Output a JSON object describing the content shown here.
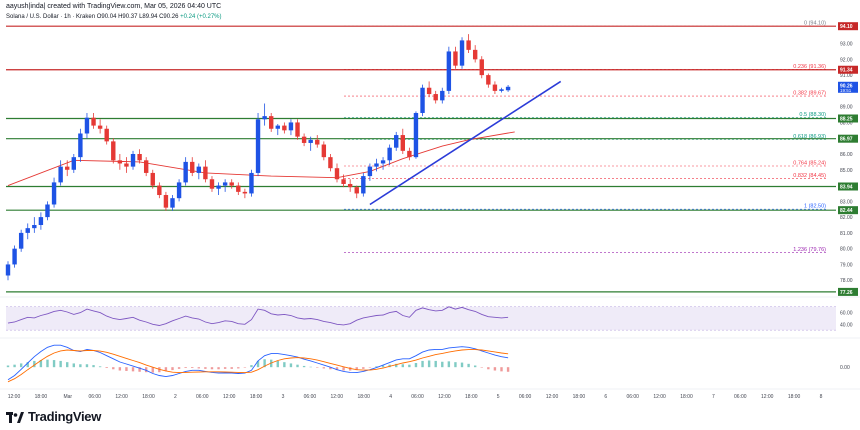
{
  "header": {
    "title": "aayush|inda| created with TradingView.com, Mar 05, 2026 04:40 UTC",
    "symbol": "Solana / U.S. Dollar · 1h · Kraken",
    "ohlc": "O90.04  H90.37  L89.94  C90.26",
    "change": "+0.24 (+0.27%)"
  },
  "footer": {
    "brand": "TradingView"
  },
  "colors": {
    "up": "#1e53e5",
    "down": "#e53935",
    "support": "#2e7d32",
    "resistance": "#c62828",
    "trendline": "#2b3bd8",
    "ma": "#e53935",
    "rsi": "#7e57c2",
    "macd": "#2962ff",
    "signal": "#ff6d00"
  },
  "chart_data": {
    "type": "candlestick",
    "price_axis": {
      "ticks": [
        "93.00",
        "92.00",
        "91.00",
        "89.00",
        "88.00",
        "87.00",
        "86.00",
        "85.00",
        "84.00",
        "83.00",
        "82.00",
        "81.00",
        "80.00",
        "79.00",
        "78.00"
      ],
      "range": [
        77.0,
        95.0
      ]
    },
    "time_axis": {
      "ticks": [
        "12:00",
        "18:00",
        "Mar",
        "06:00",
        "12:00",
        "18:00",
        "2",
        "06:00",
        "12:00",
        "18:00",
        "3",
        "06:00",
        "12:00",
        "18:00",
        "4",
        "06:00",
        "12:00",
        "18:00",
        "5",
        "06:00",
        "12:00",
        "18:00",
        "6",
        "06:00",
        "12:00",
        "18:00",
        "7",
        "06:00",
        "12:00",
        "18:00",
        "8"
      ]
    },
    "candles": [
      [
        78.3,
        79.2,
        78.0,
        79.0
      ],
      [
        79.0,
        80.2,
        78.8,
        80.0
      ],
      [
        80.0,
        81.2,
        79.8,
        81.0
      ],
      [
        81.0,
        81.6,
        80.6,
        81.3
      ],
      [
        81.3,
        82.0,
        81.0,
        81.5
      ],
      [
        81.5,
        82.3,
        81.2,
        82.0
      ],
      [
        82.0,
        83.0,
        81.8,
        82.8
      ],
      [
        82.8,
        84.5,
        82.6,
        84.2
      ],
      [
        84.2,
        85.6,
        84.0,
        85.2
      ],
      [
        85.2,
        85.6,
        84.6,
        85.0
      ],
      [
        85.0,
        86.0,
        84.8,
        85.8
      ],
      [
        85.8,
        87.6,
        85.5,
        87.3
      ],
      [
        87.3,
        88.6,
        87.0,
        88.3
      ],
      [
        88.3,
        88.6,
        87.6,
        87.8
      ],
      [
        87.8,
        88.2,
        87.3,
        87.6
      ],
      [
        87.6,
        87.8,
        86.6,
        86.8
      ],
      [
        86.8,
        87.0,
        85.4,
        85.6
      ],
      [
        85.6,
        86.0,
        85.0,
        85.4
      ],
      [
        85.4,
        85.8,
        84.8,
        85.2
      ],
      [
        85.2,
        86.2,
        85.0,
        86.0
      ],
      [
        86.0,
        86.3,
        85.4,
        85.6
      ],
      [
        85.6,
        85.8,
        84.6,
        84.8
      ],
      [
        84.8,
        85.0,
        83.8,
        84.0
      ],
      [
        84.0,
        84.2,
        83.2,
        83.4
      ],
      [
        83.4,
        83.6,
        82.4,
        82.6
      ],
      [
        82.6,
        83.4,
        82.4,
        83.2
      ],
      [
        83.2,
        84.4,
        83.0,
        84.2
      ],
      [
        84.2,
        85.8,
        84.0,
        85.5
      ],
      [
        85.5,
        85.8,
        84.6,
        84.8
      ],
      [
        84.8,
        85.4,
        84.4,
        85.2
      ],
      [
        85.2,
        85.6,
        84.2,
        84.4
      ],
      [
        84.4,
        84.6,
        83.6,
        83.8
      ],
      [
        83.8,
        84.2,
        83.4,
        84.0
      ],
      [
        84.0,
        84.4,
        83.6,
        84.2
      ],
      [
        84.2,
        84.4,
        83.8,
        84.0
      ],
      [
        84.0,
        84.2,
        83.4,
        83.6
      ],
      [
        83.6,
        83.8,
        83.2,
        83.5
      ],
      [
        83.5,
        85.0,
        83.3,
        84.8
      ],
      [
        84.8,
        88.6,
        84.6,
        88.2
      ],
      [
        88.2,
        89.2,
        87.8,
        88.4
      ],
      [
        88.4,
        88.6,
        87.4,
        87.6
      ],
      [
        87.6,
        87.9,
        87.2,
        87.8
      ],
      [
        87.8,
        88.0,
        87.3,
        87.5
      ],
      [
        87.5,
        88.2,
        87.2,
        88.0
      ],
      [
        88.0,
        88.2,
        86.9,
        87.1
      ],
      [
        87.1,
        87.3,
        86.5,
        86.7
      ],
      [
        86.7,
        87.1,
        86.2,
        86.9
      ],
      [
        86.9,
        87.2,
        86.4,
        86.6
      ],
      [
        86.6,
        86.8,
        85.6,
        85.8
      ],
      [
        85.8,
        86.0,
        84.9,
        85.1
      ],
      [
        85.1,
        85.4,
        84.2,
        84.4
      ],
      [
        84.4,
        84.7,
        83.9,
        84.1
      ],
      [
        84.1,
        84.4,
        83.6,
        83.9
      ],
      [
        83.9,
        84.0,
        83.2,
        83.5
      ],
      [
        83.5,
        84.8,
        83.3,
        84.6
      ],
      [
        84.6,
        85.4,
        84.3,
        85.2
      ],
      [
        85.2,
        85.7,
        84.9,
        85.4
      ],
      [
        85.4,
        85.8,
        85.0,
        85.6
      ],
      [
        85.6,
        86.6,
        85.3,
        86.4
      ],
      [
        86.4,
        87.4,
        86.2,
        87.2
      ],
      [
        87.2,
        87.6,
        86.0,
        86.2
      ],
      [
        86.2,
        86.4,
        85.6,
        85.8
      ],
      [
        85.8,
        88.7,
        85.7,
        88.6
      ],
      [
        88.6,
        90.4,
        88.4,
        90.2
      ],
      [
        90.2,
        90.6,
        89.6,
        89.8
      ],
      [
        89.8,
        90.0,
        89.2,
        89.4
      ],
      [
        89.4,
        90.2,
        89.2,
        90.0
      ],
      [
        90.0,
        92.8,
        89.8,
        92.5
      ],
      [
        92.5,
        92.8,
        91.4,
        91.6
      ],
      [
        91.6,
        93.4,
        91.4,
        93.2
      ],
      [
        93.2,
        93.6,
        92.4,
        92.6
      ],
      [
        92.6,
        92.9,
        91.8,
        92.0
      ],
      [
        92.0,
        92.2,
        90.8,
        91.0
      ],
      [
        91.0,
        91.1,
        90.2,
        90.4
      ],
      [
        90.4,
        90.6,
        89.8,
        90.0
      ],
      [
        90.0,
        90.2,
        89.9,
        90.1
      ],
      [
        90.04,
        90.37,
        89.94,
        90.26
      ]
    ],
    "moving_average": [
      [
        0,
        84.0
      ],
      [
        10,
        85.6
      ],
      [
        20,
        85.5
      ],
      [
        30,
        84.8
      ],
      [
        40,
        84.6
      ],
      [
        50,
        84.5
      ],
      [
        55,
        84.9
      ],
      [
        60,
        85.7
      ],
      [
        66,
        86.5
      ],
      [
        70,
        86.9
      ],
      [
        77,
        87.4
      ]
    ],
    "trendline": {
      "from": [
        55,
        82.8
      ],
      "to": [
        84,
        90.6
      ]
    },
    "horizontal_levels": [
      {
        "label": "94.10",
        "value": 94.1,
        "kind": "resistance"
      },
      {
        "label": "91.34",
        "value": 91.34,
        "kind": "resistance"
      },
      {
        "label": "88.25",
        "value": 88.25,
        "kind": "support"
      },
      {
        "label": "86.97",
        "value": 86.97,
        "kind": "support"
      },
      {
        "label": "83.94",
        "value": 83.94,
        "kind": "support"
      },
      {
        "label": "82.44",
        "value": 82.44,
        "kind": "support"
      },
      {
        "label": "77.26",
        "value": 77.26,
        "kind": "support"
      }
    ],
    "current_price": {
      "label": "90.26",
      "sublabel": "19:51",
      "value": 90.26
    },
    "fibonacci": [
      {
        "label": "0 (94.10)",
        "value": 94.1,
        "color": "#787b86"
      },
      {
        "label": "0.236 (91.36)",
        "value": 91.36,
        "color": "#f23645"
      },
      {
        "label": "0.382 (89.67)",
        "value": 89.67,
        "color": "#f23645"
      },
      {
        "label": "0.5 (88.30)",
        "value": 88.3,
        "color": "#089981"
      },
      {
        "label": "0.618 (86.93)",
        "value": 86.93,
        "color": "#089981"
      },
      {
        "label": "0.764 (85.24)",
        "value": 85.24,
        "color": "#f23645"
      },
      {
        "label": "0.832 (84.45)",
        "value": 84.45,
        "color": "#f23645"
      },
      {
        "label": "1 (82.50)",
        "value": 82.5,
        "color": "#2962ff"
      },
      {
        "label": "1.236 (79.76)",
        "value": 79.76,
        "color": "#9c27b0"
      }
    ],
    "rsi": {
      "ticks": [
        "60.00",
        "40.00"
      ],
      "range": [
        20,
        85
      ],
      "band": [
        30,
        70
      ],
      "values": [
        42,
        44,
        48,
        52,
        51,
        55,
        58,
        62,
        64,
        61,
        57,
        60,
        66,
        63,
        60,
        54,
        50,
        48,
        50,
        52,
        47,
        44,
        40,
        38,
        41,
        46,
        50,
        54,
        51,
        49,
        44,
        41,
        43,
        46,
        45,
        41,
        40,
        48,
        66,
        64,
        58,
        56,
        57,
        55,
        51,
        49,
        50,
        48,
        45,
        43,
        40,
        39,
        41,
        47,
        51,
        53,
        55,
        56,
        60,
        62,
        55,
        52,
        64,
        68,
        65,
        63,
        64,
        70,
        66,
        69,
        65,
        62,
        57,
        53,
        52,
        51,
        52
      ]
    },
    "macd": {
      "ticks": [
        "0.00"
      ],
      "range": [
        -0.9,
        1.3
      ],
      "histogram": [
        0.08,
        0.12,
        0.18,
        0.24,
        0.3,
        0.34,
        0.36,
        0.34,
        0.3,
        0.24,
        0.18,
        0.14,
        0.14,
        0.1,
        0.04,
        -0.04,
        -0.1,
        -0.16,
        -0.18,
        -0.2,
        -0.22,
        -0.24,
        -0.26,
        -0.24,
        -0.2,
        -0.14,
        -0.08,
        -0.04,
        -0.04,
        -0.06,
        -0.08,
        -0.1,
        -0.1,
        -0.08,
        -0.08,
        -0.06,
        -0.02,
        0.1,
        0.3,
        0.38,
        0.36,
        0.3,
        0.24,
        0.18,
        0.12,
        0.06,
        0.02,
        -0.02,
        -0.06,
        -0.1,
        -0.14,
        -0.16,
        -0.16,
        -0.14,
        -0.08,
        -0.02,
        0.04,
        0.08,
        0.12,
        0.16,
        0.14,
        0.12,
        0.2,
        0.3,
        0.32,
        0.3,
        0.26,
        0.28,
        0.24,
        0.22,
        0.16,
        0.08,
        -0.02,
        -0.1,
        -0.16,
        -0.2,
        -0.22
      ],
      "macd": [
        -0.6,
        -0.4,
        -0.1,
        0.2,
        0.5,
        0.75,
        0.95,
        1.05,
        1.05,
        0.95,
        0.8,
        0.75,
        0.85,
        0.8,
        0.7,
        0.55,
        0.4,
        0.25,
        0.15,
        0.05,
        -0.05,
        -0.15,
        -0.3,
        -0.4,
        -0.45,
        -0.4,
        -0.3,
        -0.2,
        -0.15,
        -0.15,
        -0.2,
        -0.25,
        -0.28,
        -0.28,
        -0.28,
        -0.3,
        -0.28,
        -0.15,
        0.3,
        0.55,
        0.65,
        0.65,
        0.6,
        0.55,
        0.48,
        0.38,
        0.3,
        0.2,
        0.1,
        0.0,
        -0.12,
        -0.2,
        -0.25,
        -0.26,
        -0.2,
        -0.12,
        -0.02,
        0.1,
        0.22,
        0.35,
        0.4,
        0.4,
        0.55,
        0.72,
        0.82,
        0.85,
        0.85,
        0.92,
        0.95,
        0.98,
        0.95,
        0.88,
        0.78,
        0.68,
        0.58,
        0.5,
        0.45
      ],
      "signal": [
        -0.7,
        -0.55,
        -0.35,
        -0.12,
        0.1,
        0.32,
        0.52,
        0.68,
        0.78,
        0.82,
        0.8,
        0.78,
        0.8,
        0.8,
        0.77,
        0.71,
        0.62,
        0.52,
        0.42,
        0.32,
        0.22,
        0.1,
        0.0,
        -0.1,
        -0.18,
        -0.24,
        -0.26,
        -0.25,
        -0.24,
        -0.23,
        -0.22,
        -0.22,
        -0.22,
        -0.23,
        -0.24,
        -0.25,
        -0.26,
        -0.24,
        -0.12,
        0.05,
        0.2,
        0.32,
        0.4,
        0.44,
        0.46,
        0.44,
        0.4,
        0.34,
        0.26,
        0.18,
        0.1,
        0.02,
        -0.06,
        -0.12,
        -0.14,
        -0.14,
        -0.1,
        -0.04,
        0.04,
        0.12,
        0.2,
        0.26,
        0.34,
        0.44,
        0.52,
        0.6,
        0.66,
        0.72,
        0.78,
        0.82,
        0.84,
        0.84,
        0.82,
        0.78,
        0.73,
        0.68,
        0.64
      ]
    }
  }
}
